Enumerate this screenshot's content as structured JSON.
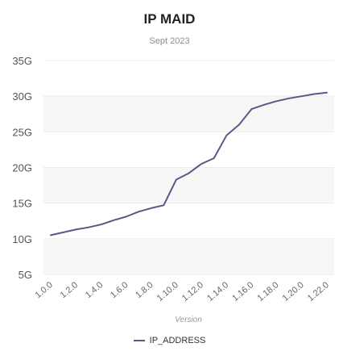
{
  "chart_data": {
    "type": "line",
    "title": "IP MAID",
    "subtitle": "Sept 2023",
    "xlabel": "Version",
    "ylabel": "",
    "ylim": [
      5,
      35
    ],
    "y_ticks": [
      5,
      10,
      15,
      20,
      25,
      30,
      35
    ],
    "y_tick_labels": [
      "5G",
      "10G",
      "15G",
      "20G",
      "25G",
      "30G",
      "35G"
    ],
    "x_tick_labels": [
      "1.0.0",
      "1.2.0",
      "1.4.0",
      "1.6.0",
      "1.8.0",
      "1.10.0",
      "1.12.0",
      "1.14.0",
      "1.16.0",
      "1.18.0",
      "1.20.0",
      "1.22.0"
    ],
    "x": [
      "1.0.0",
      "1.1.0",
      "1.2.0",
      "1.3.0",
      "1.4.0",
      "1.5.0",
      "1.6.0",
      "1.7.0",
      "1.8.0",
      "1.9.0",
      "1.10.0",
      "1.11.0",
      "1.12.0",
      "1.13.0",
      "1.14.0",
      "1.15.0",
      "1.16.0",
      "1.17.0",
      "1.18.0",
      "1.19.0",
      "1.20.0",
      "1.21.0",
      "1.22.0"
    ],
    "series": [
      {
        "name": "IP_ADDRESS",
        "color": "#565a86",
        "values": [
          10.5,
          10.9,
          11.3,
          11.6,
          12.0,
          12.6,
          13.1,
          13.8,
          14.3,
          14.7,
          18.3,
          19.2,
          20.5,
          21.3,
          24.5,
          26.0,
          28.2,
          28.8,
          29.3,
          29.7,
          30.0,
          30.3,
          30.5
        ]
      }
    ],
    "grid": true,
    "background_bands": "alternating",
    "legend_position": "bottom"
  }
}
